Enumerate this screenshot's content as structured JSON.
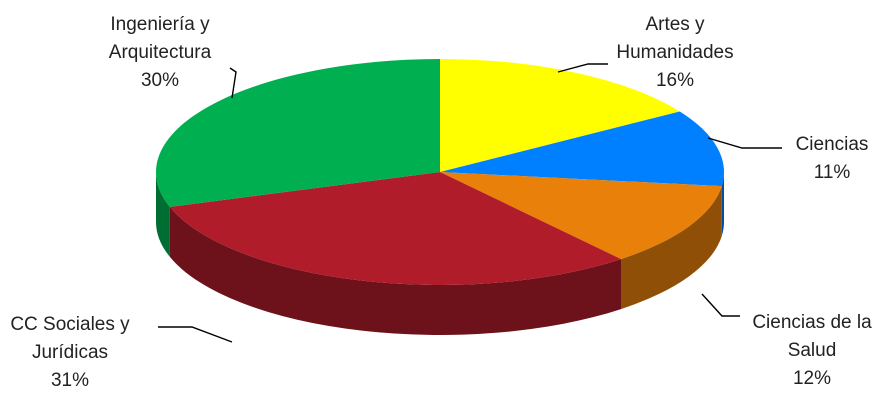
{
  "chart_data": {
    "type": "pie",
    "style": "3d",
    "title": "",
    "slices": [
      {
        "name": "Artes y Humanidades",
        "label_lines": [
          "Artes y",
          "Humanidades"
        ],
        "value": 16,
        "percent_label": "16%",
        "color": "#FFFF00"
      },
      {
        "name": "Ciencias",
        "label_lines": [
          "Ciencias"
        ],
        "value": 11,
        "percent_label": "11%",
        "color": "#0080FF"
      },
      {
        "name": "Ciencias de la Salud",
        "label_lines": [
          "Ciencias de la",
          "Salud"
        ],
        "value": 12,
        "percent_label": "12%",
        "color": "#E8800A"
      },
      {
        "name": "CC Sociales y Jurídicas",
        "label_lines": [
          "CC Sociales y",
          "Jurídicas"
        ],
        "value": 31,
        "percent_label": "31%",
        "color": "#B01C2A"
      },
      {
        "name": "Ingeniería y Arquitectura",
        "label_lines": [
          "Ingeniería y",
          "Arquitectura"
        ],
        "value": 30,
        "percent_label": "30%",
        "color": "#00B050"
      }
    ],
    "start_position": "12 o'clock",
    "direction": "clockwise",
    "legend": "none",
    "data_labels": "outside-with-leader-lines"
  }
}
